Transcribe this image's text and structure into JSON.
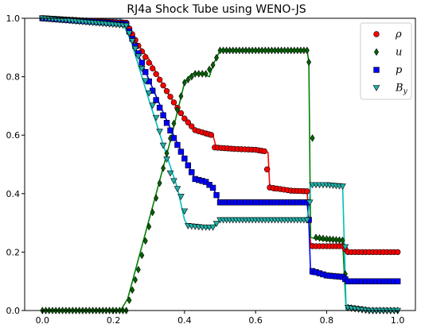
{
  "chart_data": {
    "type": "line",
    "title": "RJ4a Shock Tube using WENO-JS",
    "xlim": [
      -0.05,
      1.05
    ],
    "ylim": [
      0.0,
      1.0
    ],
    "x_ticks": [
      0.0,
      0.2,
      0.4,
      0.6,
      0.8,
      1.0
    ],
    "x_tick_labels": [
      "0.0",
      "0.2",
      "0.4",
      "0.6",
      "0.8",
      "1.0"
    ],
    "y_ticks": [
      0.0,
      0.2,
      0.4,
      0.6,
      0.8,
      1.0
    ],
    "y_tick_labels": [
      "0.0",
      "0.2",
      "0.4",
      "0.6",
      "0.8",
      "1.0"
    ],
    "legend_position": "top-right",
    "grid": false,
    "series": [
      {
        "name": "ρ",
        "sub": "",
        "marker": "circle",
        "marker_color": "#ff0000",
        "line_color": "#ff0000",
        "line": [
          [
            0.0,
            1.0
          ],
          [
            0.22,
            1.0
          ],
          [
            0.25,
            0.94
          ],
          [
            0.3,
            0.86
          ],
          [
            0.35,
            0.75
          ],
          [
            0.4,
            0.655
          ],
          [
            0.43,
            0.615
          ],
          [
            0.46,
            0.605
          ],
          [
            0.48,
            0.6
          ],
          [
            0.49,
            0.555
          ],
          [
            0.62,
            0.55
          ],
          [
            0.625,
            0.55
          ],
          [
            0.635,
            0.54
          ],
          [
            0.64,
            0.42
          ],
          [
            0.65,
            0.41
          ],
          [
            0.745,
            0.41
          ],
          [
            0.75,
            0.3
          ],
          [
            0.755,
            0.23
          ],
          [
            0.79,
            0.22
          ],
          [
            0.8,
            0.22
          ],
          [
            0.845,
            0.22
          ],
          [
            0.855,
            0.2
          ],
          [
            1.0,
            0.2
          ]
        ],
        "points": [
          [
            0.0,
            1.0
          ],
          [
            0.236,
            0.985
          ],
          [
            0.27,
            0.906
          ],
          [
            0.32,
            0.809
          ],
          [
            0.37,
            0.712
          ],
          [
            0.4,
            0.657
          ],
          [
            0.43,
            0.617
          ],
          [
            0.46,
            0.606
          ],
          [
            0.475,
            0.601
          ],
          [
            0.485,
            0.558
          ],
          [
            0.54,
            0.553
          ],
          [
            0.6,
            0.55
          ],
          [
            0.625,
            0.545
          ],
          [
            0.64,
            0.421
          ],
          [
            0.7,
            0.41
          ],
          [
            0.745,
            0.408
          ],
          [
            0.75,
            0.31
          ],
          [
            0.76,
            0.22
          ],
          [
            0.8,
            0.22
          ],
          [
            0.845,
            0.22
          ],
          [
            0.86,
            0.2
          ],
          [
            0.92,
            0.2
          ],
          [
            1.0,
            0.2
          ]
        ]
      },
      {
        "name": "u",
        "sub": "",
        "marker": "diamond",
        "marker_color": "#006400",
        "line_color": "#008000",
        "line": [
          [
            0.0,
            0.0
          ],
          [
            0.22,
            0.0
          ],
          [
            0.24,
            0.04
          ],
          [
            0.28,
            0.22
          ],
          [
            0.32,
            0.4
          ],
          [
            0.36,
            0.58
          ],
          [
            0.38,
            0.68
          ],
          [
            0.4,
            0.78
          ],
          [
            0.42,
            0.81
          ],
          [
            0.45,
            0.81
          ],
          [
            0.47,
            0.8
          ],
          [
            0.48,
            0.84
          ],
          [
            0.5,
            0.89
          ],
          [
            0.745,
            0.89
          ],
          [
            0.75,
            0.85
          ],
          [
            0.755,
            0.25
          ],
          [
            0.79,
            0.24
          ],
          [
            0.845,
            0.24
          ],
          [
            0.855,
            0.0
          ],
          [
            1.0,
            0.0
          ]
        ],
        "points": [
          [
            0.0,
            0.0
          ],
          [
            0.236,
            0.0
          ],
          [
            0.27,
            0.14
          ],
          [
            0.32,
            0.385
          ],
          [
            0.37,
            0.64
          ],
          [
            0.4,
            0.78
          ],
          [
            0.43,
            0.81
          ],
          [
            0.46,
            0.81
          ],
          [
            0.48,
            0.84
          ],
          [
            0.5,
            0.89
          ],
          [
            0.6,
            0.89
          ],
          [
            0.7,
            0.89
          ],
          [
            0.745,
            0.89
          ],
          [
            0.75,
            0.85
          ],
          [
            0.76,
            0.59
          ],
          [
            0.77,
            0.25
          ],
          [
            0.8,
            0.245
          ],
          [
            0.845,
            0.24
          ],
          [
            0.86,
            0.01
          ],
          [
            0.92,
            0.0
          ],
          [
            1.0,
            0.0
          ]
        ]
      },
      {
        "name": "p",
        "sub": "",
        "marker": "square",
        "marker_color": "#0000ff",
        "line_color": "#0000ff",
        "line": [
          [
            0.0,
            1.0
          ],
          [
            0.22,
            1.0
          ],
          [
            0.25,
            0.93
          ],
          [
            0.3,
            0.79
          ],
          [
            0.35,
            0.65
          ],
          [
            0.4,
            0.52
          ],
          [
            0.43,
            0.45
          ],
          [
            0.46,
            0.435
          ],
          [
            0.48,
            0.42
          ],
          [
            0.5,
            0.37
          ],
          [
            0.745,
            0.37
          ],
          [
            0.75,
            0.3
          ],
          [
            0.755,
            0.125
          ],
          [
            0.79,
            0.12
          ],
          [
            0.845,
            0.12
          ],
          [
            0.855,
            0.1
          ],
          [
            1.0,
            0.1
          ]
        ],
        "points": [
          [
            0.0,
            1.0
          ],
          [
            0.236,
            0.98
          ],
          [
            0.27,
            0.88
          ],
          [
            0.32,
            0.72
          ],
          [
            0.37,
            0.59
          ],
          [
            0.4,
            0.52
          ],
          [
            0.43,
            0.45
          ],
          [
            0.46,
            0.44
          ],
          [
            0.48,
            0.42
          ],
          [
            0.5,
            0.37
          ],
          [
            0.6,
            0.37
          ],
          [
            0.7,
            0.37
          ],
          [
            0.745,
            0.37
          ],
          [
            0.75,
            0.31
          ],
          [
            0.76,
            0.135
          ],
          [
            0.8,
            0.12
          ],
          [
            0.845,
            0.115
          ],
          [
            0.86,
            0.1
          ],
          [
            0.92,
            0.1
          ],
          [
            1.0,
            0.1
          ]
        ]
      },
      {
        "name": "B",
        "sub": "y",
        "marker": "triangle-down",
        "marker_color": "#20b2aa",
        "line_color": "#00c0c0",
        "line": [
          [
            0.0,
            1.0
          ],
          [
            0.22,
            1.0
          ],
          [
            0.25,
            0.92
          ],
          [
            0.3,
            0.72
          ],
          [
            0.35,
            0.53
          ],
          [
            0.38,
            0.42
          ],
          [
            0.4,
            0.31
          ],
          [
            0.41,
            0.29
          ],
          [
            0.45,
            0.285
          ],
          [
            0.47,
            0.28
          ],
          [
            0.49,
            0.3
          ],
          [
            0.5,
            0.31
          ],
          [
            0.745,
            0.31
          ],
          [
            0.75,
            0.35
          ],
          [
            0.755,
            0.43
          ],
          [
            0.845,
            0.43
          ],
          [
            0.855,
            0.0
          ],
          [
            1.0,
            0.0
          ]
        ],
        "points": [
          [
            0.0,
            1.0
          ],
          [
            0.236,
            0.975
          ],
          [
            0.27,
            0.87
          ],
          [
            0.32,
            0.66
          ],
          [
            0.36,
            0.47
          ],
          [
            0.39,
            0.39
          ],
          [
            0.41,
            0.29
          ],
          [
            0.45,
            0.285
          ],
          [
            0.48,
            0.285
          ],
          [
            0.5,
            0.31
          ],
          [
            0.6,
            0.31
          ],
          [
            0.7,
            0.31
          ],
          [
            0.745,
            0.31
          ],
          [
            0.76,
            0.43
          ],
          [
            0.8,
            0.43
          ],
          [
            0.845,
            0.425
          ],
          [
            0.86,
            0.01
          ],
          [
            0.92,
            0.0
          ],
          [
            1.0,
            0.0
          ]
        ]
      }
    ]
  }
}
